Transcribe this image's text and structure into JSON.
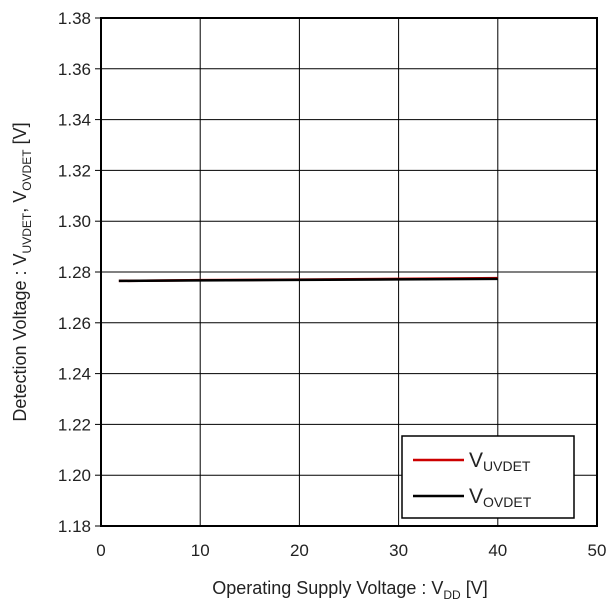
{
  "chart_data": {
    "type": "line",
    "xlabel": {
      "main": "Operating Supply Voltage : V",
      "sub": "DD",
      "unit": " [V]"
    },
    "ylabel": {
      "p1": "Detection Voltage : V",
      "sub1": "UVDET",
      "p2": ",  V",
      "sub2": "OVDET",
      "unit": " [V]"
    },
    "xlim": [
      0,
      50
    ],
    "ylim": [
      1.18,
      1.38
    ],
    "x_ticks": [
      "0",
      "10",
      "20",
      "30",
      "40",
      "50"
    ],
    "y_ticks": [
      "1.18",
      "1.20",
      "1.22",
      "1.24",
      "1.26",
      "1.28",
      "1.30",
      "1.32",
      "1.34",
      "1.36",
      "1.38"
    ],
    "grid": true,
    "legend_position": "bottom-right",
    "series": [
      {
        "name_main": "V",
        "name_sub": "UVDET",
        "color": "#cc0000",
        "x": [
          1.8,
          10,
          20,
          30,
          40
        ],
        "y": [
          1.2765,
          1.2768,
          1.277,
          1.2773,
          1.2776
        ]
      },
      {
        "name_main": "V",
        "name_sub": "OVDET",
        "color": "#000000",
        "x": [
          1.8,
          10,
          20,
          30,
          40
        ],
        "y": [
          1.2765,
          1.2767,
          1.2769,
          1.2771,
          1.2773
        ]
      }
    ]
  }
}
